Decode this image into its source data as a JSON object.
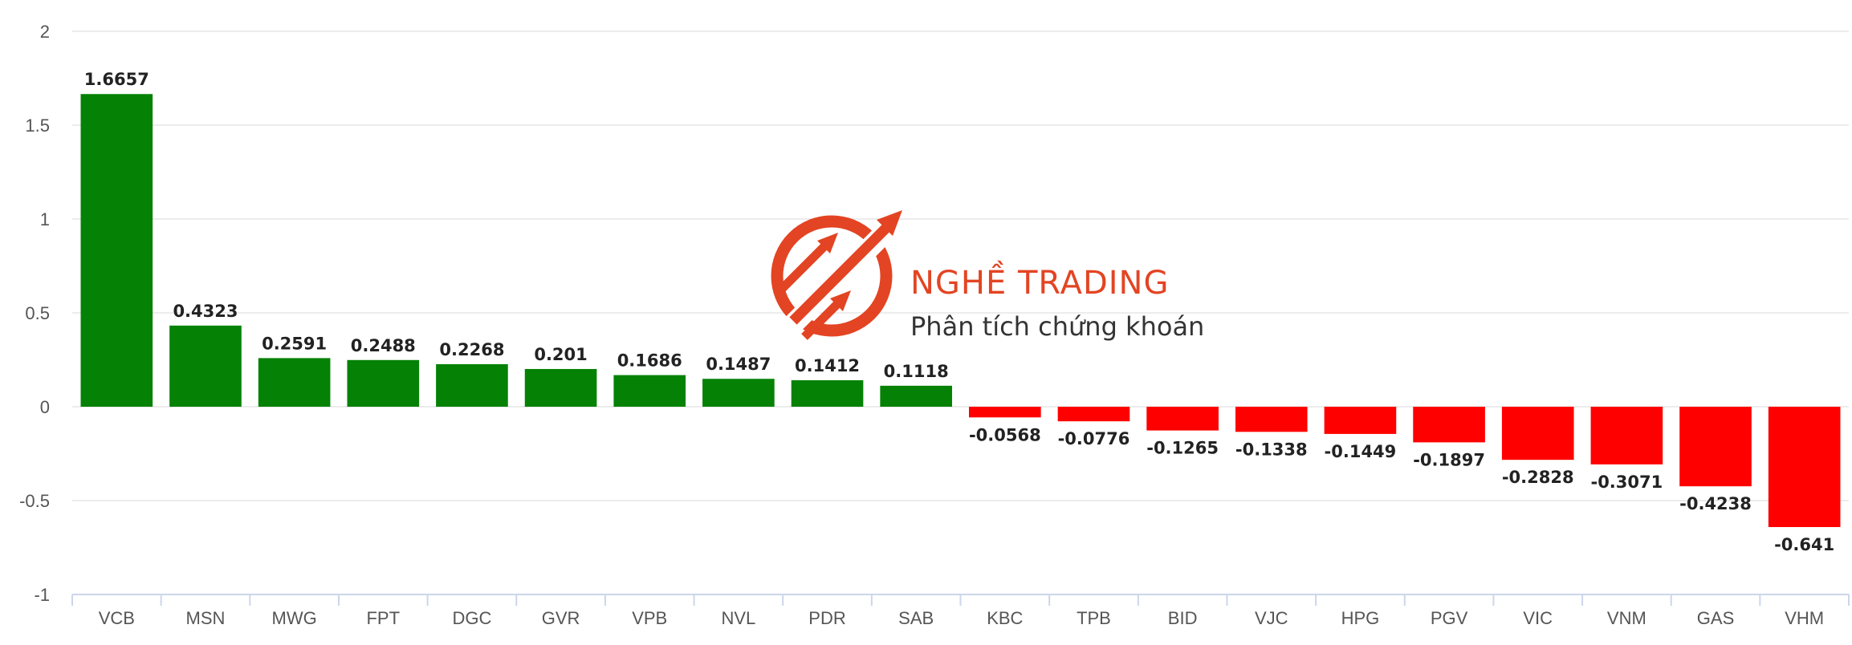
{
  "watermark": {
    "brand": "NGHỀ TRADING",
    "tagline": "Phân tích chứng khoán"
  },
  "colors": {
    "positive": "#058205",
    "negative": "#ff0000",
    "grid": "#e6e6e6",
    "axis": "#ccd6eb",
    "brand": "#e23a18"
  },
  "chart_data": {
    "type": "bar",
    "title": "",
    "xlabel": "",
    "ylabel": "",
    "ylim": [
      -1,
      2
    ],
    "yticks": [
      2,
      1.5,
      1,
      0.5,
      0,
      -0.5,
      -1
    ],
    "ytick_labels": [
      "2",
      "1.5",
      "1",
      "0.5",
      "0",
      "-0.5",
      "-1"
    ],
    "grid": true,
    "legend": "none",
    "categories": [
      "VCB",
      "MSN",
      "MWG",
      "FPT",
      "DGC",
      "GVR",
      "VPB",
      "NVL",
      "PDR",
      "SAB",
      "KBC",
      "TPB",
      "BID",
      "VJC",
      "HPG",
      "PGV",
      "VIC",
      "VNM",
      "GAS",
      "VHM"
    ],
    "values": [
      1.6657,
      0.4323,
      0.2591,
      0.2488,
      0.2268,
      0.201,
      0.1686,
      0.1487,
      0.1412,
      0.1118,
      -0.0568,
      -0.0776,
      -0.1265,
      -0.1338,
      -0.1449,
      -0.1897,
      -0.2828,
      -0.3071,
      -0.4238,
      -0.641
    ],
    "value_labels": [
      "1.6657",
      "0.4323",
      "0.2591",
      "0.2488",
      "0.2268",
      "0.201",
      "0.1686",
      "0.1487",
      "0.1412",
      "0.1118",
      "-0.0568",
      "-0.0776",
      "-0.1265",
      "-0.1338",
      "-0.1449",
      "-0.1897",
      "-0.2828",
      "-0.3071",
      "-0.4238",
      "-0.641"
    ]
  }
}
